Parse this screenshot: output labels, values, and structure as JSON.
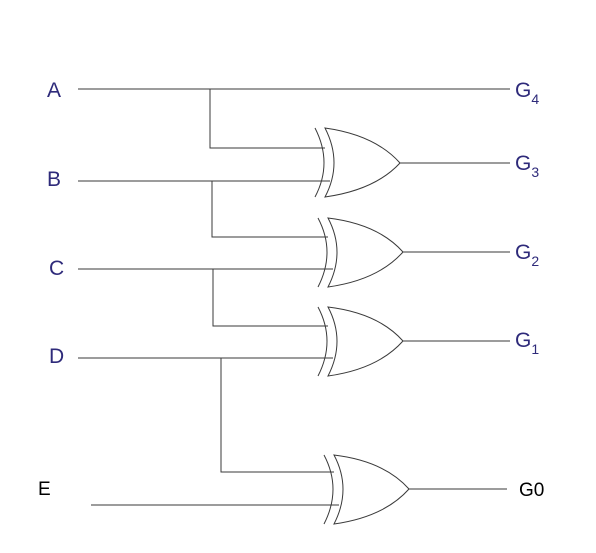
{
  "inputs": {
    "a": "A",
    "b": "B",
    "c": "C",
    "d": "D",
    "e": "E"
  },
  "outputs": {
    "g4": {
      "letter": "G",
      "subscript": "4"
    },
    "g3": {
      "letter": "G",
      "subscript": "3"
    },
    "g2": {
      "letter": "G",
      "subscript": "2"
    },
    "g1": {
      "letter": "G",
      "subscript": "1"
    },
    "g0": "G0"
  },
  "colors": {
    "label": "#2e2a7a",
    "label_g0": "#000000",
    "wire": "#3a3a3a"
  },
  "gates": [
    {
      "type": "XOR",
      "inputs": [
        "A",
        "B"
      ],
      "output": "G3"
    },
    {
      "type": "XOR",
      "inputs": [
        "B",
        "C"
      ],
      "output": "G2"
    },
    {
      "type": "XOR",
      "inputs": [
        "C",
        "D"
      ],
      "output": "G1"
    },
    {
      "type": "XOR",
      "inputs": [
        "D",
        "E"
      ],
      "output": "G0"
    }
  ]
}
